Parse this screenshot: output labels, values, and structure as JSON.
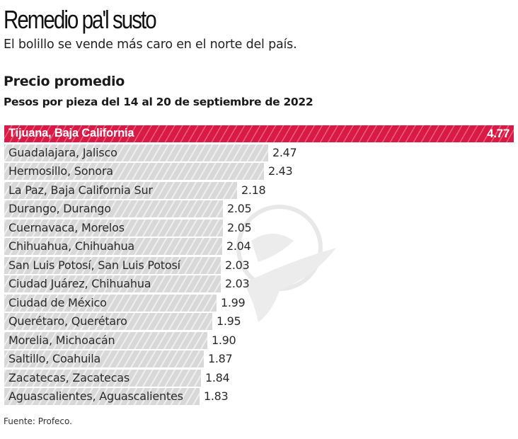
{
  "header": {
    "title": "Remedio pa'l susto",
    "subtitle": "El bolillo se vende más caro en el norte del país.",
    "heading": "Precio promedio",
    "subheading": "Pesos por pieza del 14 al 20 de septiembre de 2022"
  },
  "footer": {
    "source": "Fuente: Profeco."
  },
  "colors": {
    "highlight": "#d91a46",
    "bar": "#d8d8d8"
  },
  "chart_data": {
    "type": "bar",
    "orientation": "horizontal",
    "title": "Precio promedio",
    "subtitle": "Pesos por pieza del 14 al 20 de septiembre de 2022",
    "xlabel": "",
    "ylabel": "",
    "grid": false,
    "legend": null,
    "highlighted_category": "Tijuana, Baja California",
    "categories": [
      "Tijuana, Baja California",
      "Guadalajara, Jalisco",
      "Hermosillo, Sonora",
      "La Paz, Baja California Sur",
      "Durango, Durango",
      "Cuernavaca, Morelos",
      "Chihuahua, Chihuahua",
      "San Luis Potosí, San Luis Potosí",
      "Ciudad Juárez, Chihuahua",
      "Ciudad de México",
      "Querétaro, Querétaro",
      "Morelia, Michoacán",
      "Saltillo, Coahuila",
      "Zacatecas, Zacatecas",
      "Aguascalientes, Aguascalientes"
    ],
    "values": [
      4.77,
      2.47,
      2.43,
      2.18,
      2.05,
      2.05,
      2.04,
      2.03,
      2.03,
      1.99,
      1.95,
      1.9,
      1.87,
      1.84,
      1.83
    ],
    "value_labels": [
      "4.77",
      "2.47",
      "2.43",
      "2.18",
      "2.05",
      "2.05",
      "2.04",
      "2.03",
      "2.03",
      "1.99",
      "1.95",
      "1.90",
      "1.87",
      "1.84",
      "1.83"
    ],
    "source": "Fuente: Profeco."
  }
}
